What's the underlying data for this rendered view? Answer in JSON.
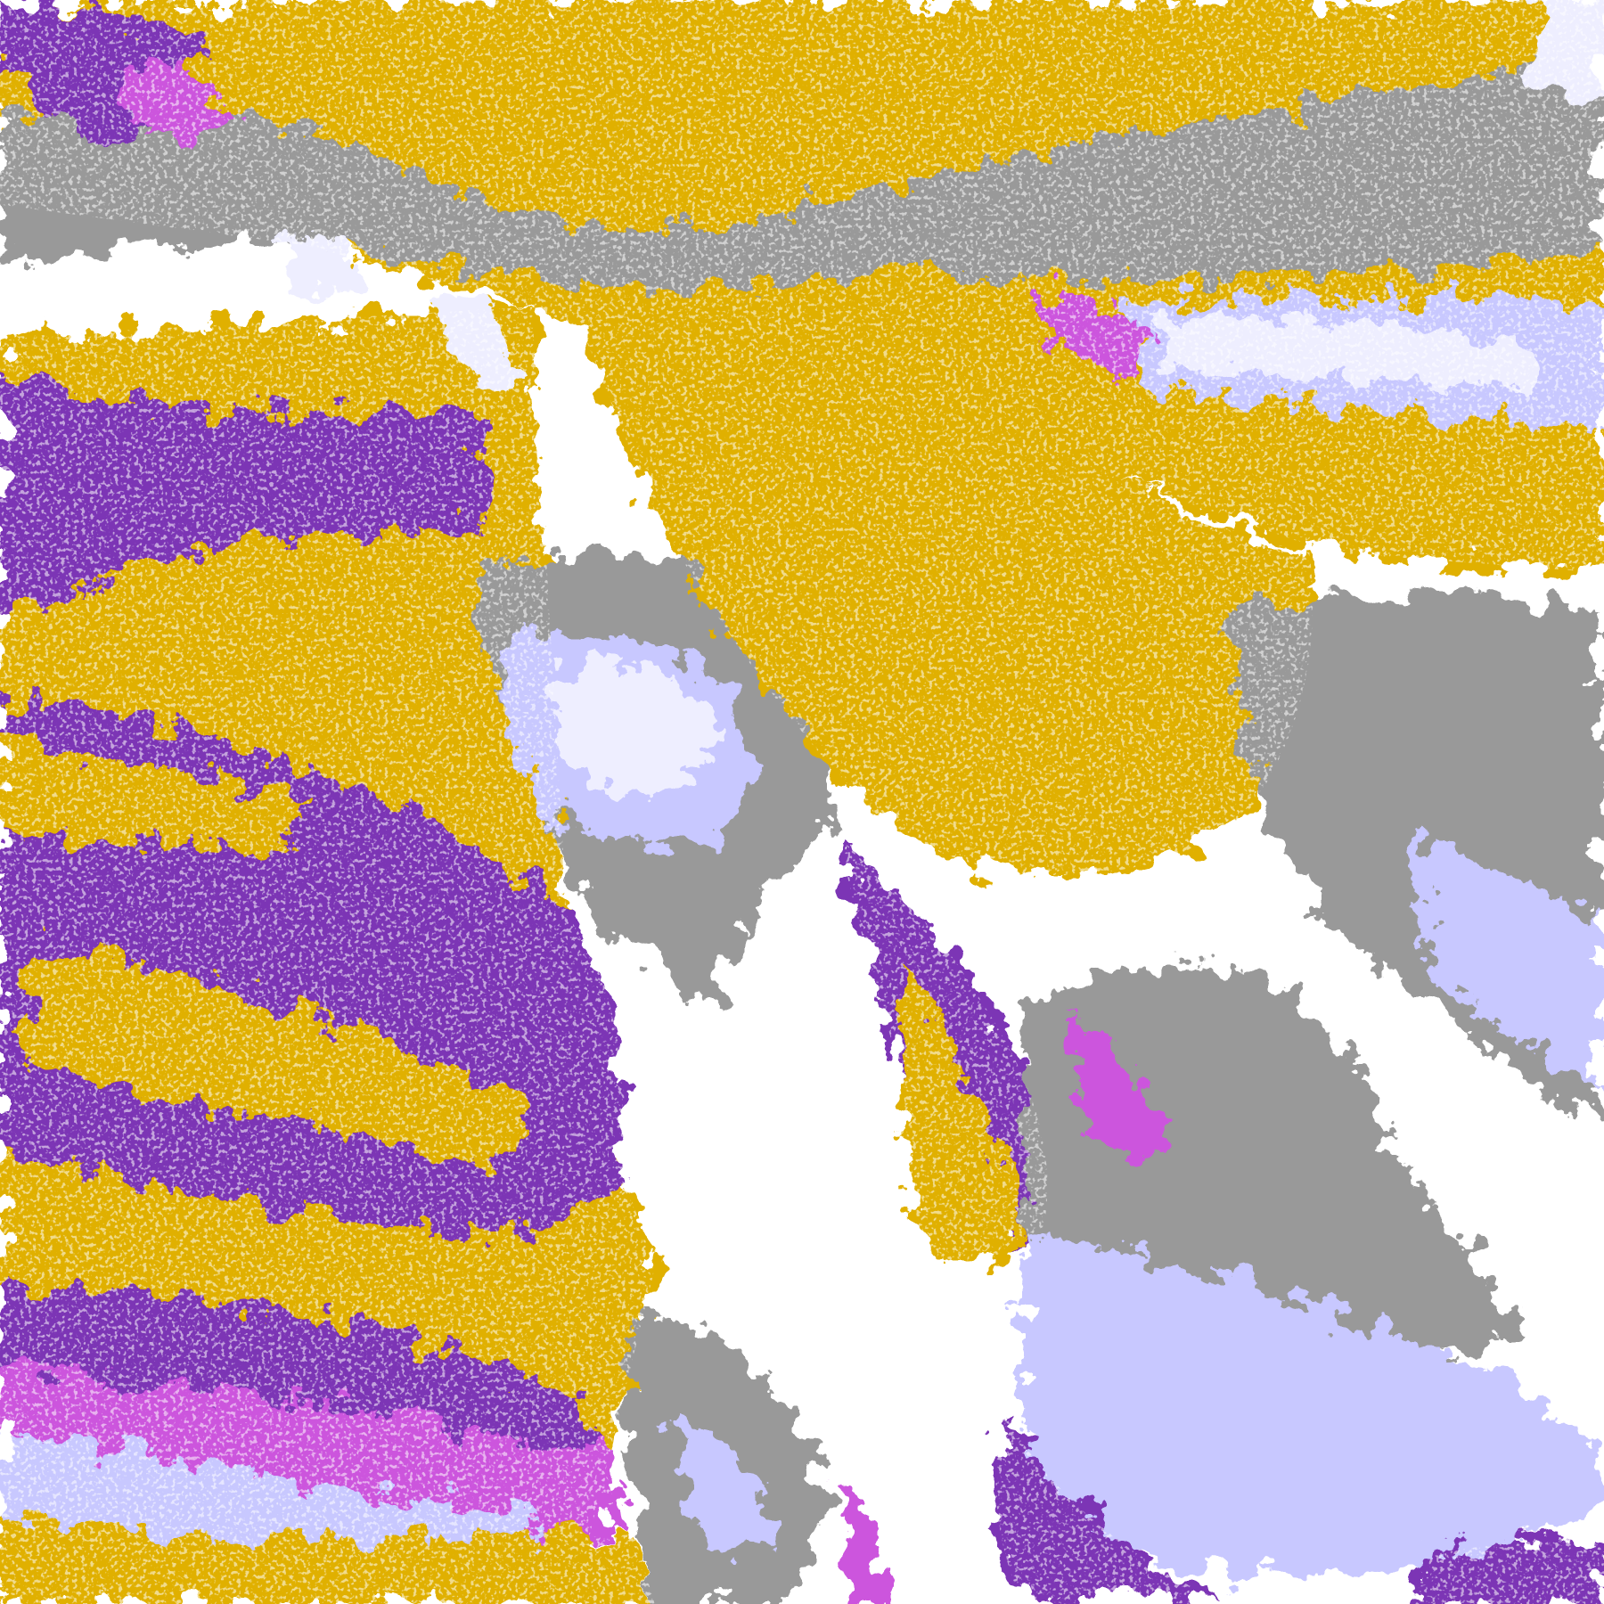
{
  "map": {
    "type": "classified-satellite-cloud-imagery",
    "text_labels": [],
    "palette": {
      "clear": "#ffffff",
      "gold": "#e0b000",
      "dark_gold": "#c09000",
      "purple": "#7b35b5",
      "magenta": "#cc55dd",
      "blue_violet": "#7878f0",
      "lavender": "#c8c8ff",
      "pale_lavender": "#eeeeff",
      "gray": "#999999",
      "light_gray": "#bbbbbb"
    }
  }
}
